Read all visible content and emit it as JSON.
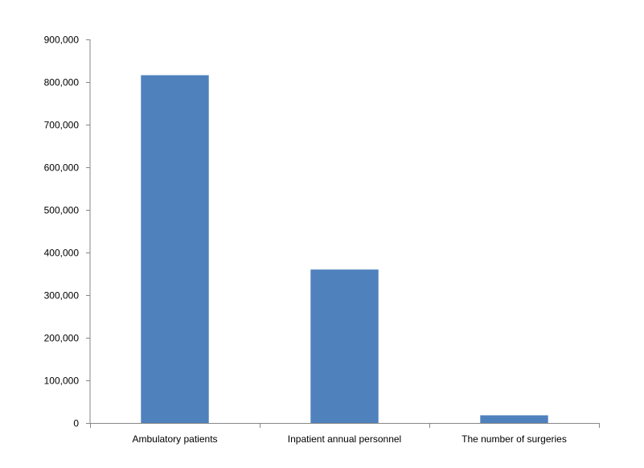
{
  "chart_data": {
    "type": "bar",
    "categories": [
      "Ambulatory patients",
      "Inpatient annual personnel",
      "The number of surgeries"
    ],
    "values": [
      816000,
      360000,
      18000
    ],
    "title": "",
    "xlabel": "",
    "ylabel": "",
    "ylim": [
      0,
      900000
    ],
    "yticks": [
      0,
      100000,
      200000,
      300000,
      400000,
      500000,
      600000,
      700000,
      800000,
      900000
    ],
    "ytick_labels": [
      "0",
      "100,000",
      "200,000",
      "300,000",
      "400,000",
      "500,000",
      "600,000",
      "700,000",
      "800,000",
      "900,000"
    ],
    "grid": false,
    "legend": "none",
    "bar_color": "#4f81bd",
    "axis_color": "#868686"
  }
}
